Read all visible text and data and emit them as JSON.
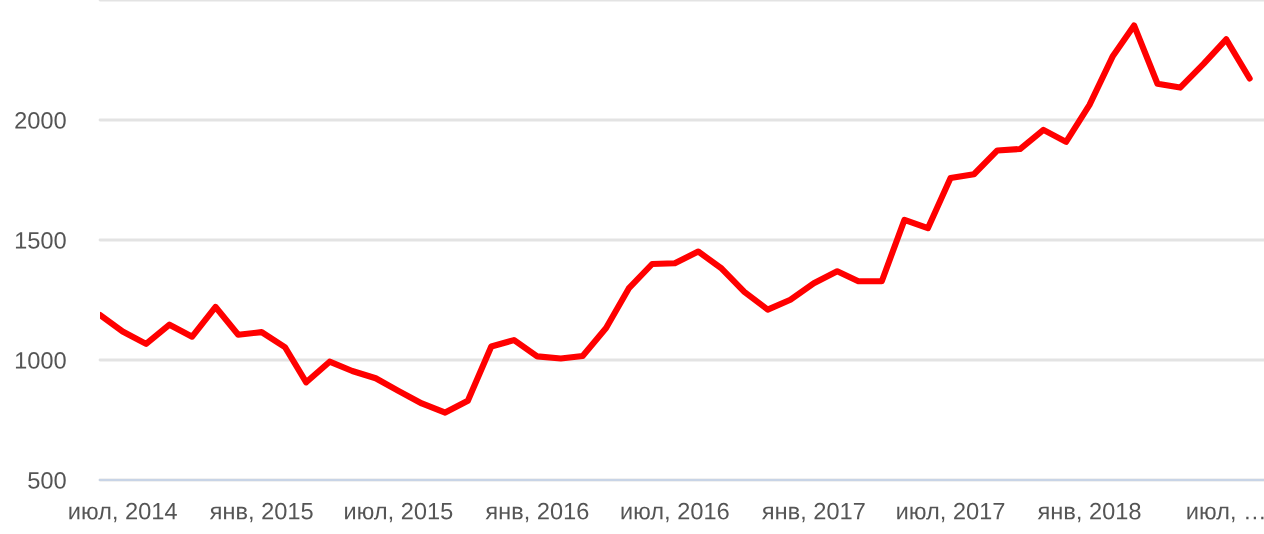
{
  "chart_data": {
    "type": "line",
    "x": [
      "2014-06",
      "2014-07",
      "2014-08",
      "2014-09",
      "2014-10",
      "2014-11",
      "2014-12",
      "2015-01",
      "2015-02",
      "2015-03",
      "2015-04",
      "2015-05",
      "2015-06",
      "2015-07",
      "2015-08",
      "2015-09",
      "2015-10",
      "2015-11",
      "2015-12",
      "2016-01",
      "2016-02",
      "2016-03",
      "2016-04",
      "2016-05",
      "2016-06",
      "2016-07",
      "2016-08",
      "2016-09",
      "2016-10",
      "2016-11",
      "2016-12",
      "2017-01",
      "2017-02",
      "2017-03",
      "2017-04",
      "2017-05",
      "2017-06",
      "2017-07",
      "2017-08",
      "2017-09",
      "2017-10",
      "2017-11",
      "2017-12",
      "2018-01",
      "2018-02",
      "2018-03",
      "2018-04",
      "2018-05",
      "2018-06",
      "2018-07",
      "2018-08"
    ],
    "series": [
      {
        "color": "#ff0000",
        "values": [
          1188,
          1119,
          1067,
          1147,
          1097,
          1221,
          1105,
          1116,
          1053,
          907,
          993,
          954,
          924,
          871,
          819,
          781,
          830,
          1056,
          1083,
          1015,
          1006,
          1017,
          1133,
          1298,
          1400,
          1403,
          1452,
          1381,
          1284,
          1210,
          1251,
          1320,
          1370,
          1328,
          1328,
          1584,
          1549,
          1758,
          1774,
          1873,
          1879,
          1959,
          1909,
          2063,
          2267,
          2394,
          2151,
          2135,
          2234,
          2336,
          2173
        ]
      }
    ],
    "xlim": [
      "2014-06-01",
      "2018-08-20"
    ],
    "xticks": [
      {
        "value": "2014-07",
        "label": "июл, 2014"
      },
      {
        "value": "2015-01",
        "label": "янв, 2015"
      },
      {
        "value": "2015-07",
        "label": "июл, 2015"
      },
      {
        "value": "2016-01",
        "label": "янв, 2016"
      },
      {
        "value": "2016-07",
        "label": "июл, 2016"
      },
      {
        "value": "2017-01",
        "label": "янв, 2017"
      },
      {
        "value": "2017-07",
        "label": "июл, 2017"
      },
      {
        "value": "2018-01",
        "label": "янв, 2018"
      },
      {
        "value": "2018-07",
        "label": "июл, …"
      }
    ],
    "ylim": [
      500,
      2500
    ],
    "yticks": [
      500,
      1000,
      1500,
      2000,
      {
        "value": 2500,
        "label": null
      }
    ],
    "grid": "y",
    "marker": "none",
    "line_style": "solid"
  }
}
